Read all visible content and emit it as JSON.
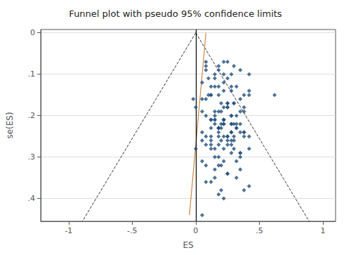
{
  "chart_data": {
    "type": "scatter",
    "title": "Funnel plot with pseudo 95% confidence limits",
    "xlabel": "ES",
    "ylabel": "se(ES)",
    "xlim": [
      -1.22,
      1.1
    ],
    "ylim": [
      0.455,
      -0.008
    ],
    "xticks": [
      -1,
      {
        "value": -0.5,
        "label": "-.5"
      },
      0,
      {
        "value": 0.5,
        "label": ".5"
      },
      1
    ],
    "yticks": [
      0,
      {
        "value": 0.1,
        "label": ".1"
      },
      {
        "value": 0.2,
        "label": ".2"
      },
      {
        "value": 0.3,
        "label": ".3"
      },
      {
        "value": 0.4,
        "label": ".4"
      }
    ],
    "grid": "y",
    "series": [
      {
        "type": "line",
        "line_style": "dashed",
        "color": "#333333",
        "x": [
          0.0,
          -0.8918
        ],
        "y": [
          0,
          0.455
        ]
      },
      {
        "type": "line",
        "line_style": "dashed",
        "color": "#333333",
        "x": [
          0.0,
          0.8918
        ],
        "y": [
          0,
          0.455
        ]
      },
      {
        "type": "line",
        "line_style": "solid",
        "color": "#cc8844",
        "x": [
          0.08,
          -0.05
        ],
        "y": [
          0.0,
          0.44
        ]
      },
      {
        "type": "vline",
        "line_style": "solid",
        "color": "#000000",
        "x": [
          0.0
        ]
      },
      {
        "type": "scatter",
        "marker": "diamond",
        "color": "#1f4e79",
        "x": [
          0.18,
          0.22,
          0.08,
          0.15,
          0.25,
          0.3,
          0.05,
          0.35,
          0.12,
          0.28,
          0.18,
          0.22,
          0.08,
          0.15,
          0.25,
          0.32,
          0.2,
          0.38,
          0.25,
          0.05,
          -0.02,
          0.12,
          0.42,
          0.28,
          0.35,
          0.0,
          0.1,
          0.22,
          0.3,
          0.18,
          0.12,
          0.28,
          0.22,
          0.15,
          0.32,
          0.2,
          0.05,
          0.38,
          0.42,
          0.08,
          0.18,
          0.25,
          0.3,
          0.35,
          0.12,
          0.28,
          0.18,
          0.22,
          0.15,
          0.32,
          0.2,
          0.38,
          0.25,
          0.05,
          0.12,
          0.42,
          0.28,
          0.35,
          0.08,
          0.22,
          0.15,
          0.25,
          0.3,
          0.35,
          0.12,
          0.28,
          0.18,
          0.22,
          0.15,
          0.32,
          0.2,
          0.38,
          0.25,
          0.05,
          0.12,
          0.42,
          0.28,
          0.35,
          0.18,
          0.22,
          0.08,
          0.15,
          0.25,
          0.3,
          0.35,
          0.12,
          0.28,
          0.18,
          0.22,
          0.15,
          0.32,
          0.2,
          0.38,
          0.25,
          0.05,
          0.12,
          0.42,
          0.28,
          0.18,
          0.35,
          0.1,
          0.22,
          0.08,
          0.62,
          0.18,
          0.28,
          0.22,
          0.15,
          0.32,
          0.2,
          0.05,
          0.38,
          0.42,
          0.08,
          0.15,
          0.25,
          0.32,
          0.2,
          0.18,
          0.22,
          0.3,
          0.12,
          0.38,
          0.28,
          0.18,
          0.15,
          0.22,
          0.35,
          0.0,
          0.08,
          0.25,
          0.3,
          0.18,
          0.12,
          0.28,
          0.22,
          0.15,
          0.08,
          0.18,
          0.25
        ],
        "y": [
          0.08,
          0.07,
          0.09,
          0.1,
          0.11,
          0.08,
          0.12,
          0.09,
          0.13,
          0.1,
          0.15,
          0.14,
          0.16,
          0.13,
          0.17,
          0.13,
          0.17,
          0.15,
          0.18,
          0.19,
          0.16,
          0.21,
          0.1,
          0.2,
          0.19,
          0.18,
          0.15,
          0.18,
          0.17,
          0.19,
          0.21,
          0.2,
          0.22,
          0.21,
          0.23,
          0.22,
          0.24,
          0.19,
          0.15,
          0.25,
          0.23,
          0.25,
          0.22,
          0.24,
          0.26,
          0.22,
          0.27,
          0.25,
          0.28,
          0.23,
          0.26,
          0.24,
          0.27,
          0.31,
          0.28,
          0.25,
          0.26,
          0.29,
          0.2,
          0.21,
          0.19,
          0.18,
          0.17,
          0.16,
          0.15,
          0.14,
          0.13,
          0.12,
          0.11,
          0.22,
          0.23,
          0.24,
          0.25,
          0.26,
          0.27,
          0.28,
          0.29,
          0.22,
          0.3,
          0.31,
          0.32,
          0.33,
          0.34,
          0.28,
          0.3,
          0.25,
          0.24,
          0.23,
          0.22,
          0.21,
          0.2,
          0.19,
          0.18,
          0.17,
          0.16,
          0.15,
          0.14,
          0.13,
          0.32,
          0.33,
          0.11,
          0.1,
          0.07,
          0.15,
          0.25,
          0.27,
          0.28,
          0.3,
          0.31,
          0.32,
          0.44,
          0.38,
          0.37,
          0.36,
          0.35,
          0.34,
          0.35,
          0.38,
          0.39,
          0.4,
          0.26,
          0.36,
          0.25,
          0.24,
          0.23,
          0.22,
          0.21,
          0.29,
          0.28,
          0.27,
          0.26,
          0.25,
          0.24,
          0.23,
          0.22,
          0.21,
          0.2,
          0.08,
          0.09,
          0.07
        ]
      }
    ]
  }
}
